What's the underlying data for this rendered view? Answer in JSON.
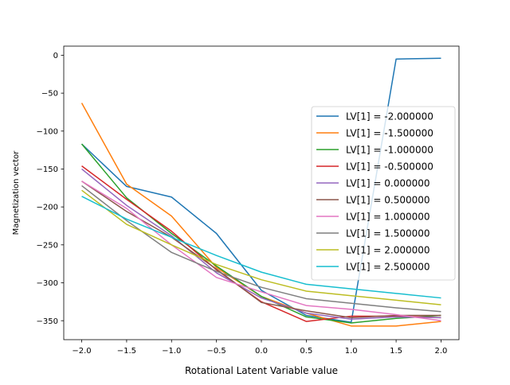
{
  "chart_data": {
    "type": "line",
    "title": "",
    "xlabel": "Rotational Latent Variable value",
    "ylabel": "Magnetization vector",
    "xlim": [
      -2.2,
      2.2
    ],
    "ylim": [
      -375,
      12
    ],
    "xticks": [
      -2.0,
      -1.5,
      -1.0,
      -0.5,
      0.0,
      0.5,
      1.0,
      1.5,
      2.0
    ],
    "xtick_labels": [
      "−2.0",
      "−1.5",
      "−1.0",
      "−0.5",
      "0.0",
      "0.5",
      "1.0",
      "1.5",
      "2.0"
    ],
    "yticks": [
      0,
      -50,
      -100,
      -150,
      -200,
      -250,
      -300,
      -350
    ],
    "ytick_labels": [
      "0",
      "−50",
      "−100",
      "−150",
      "−200",
      "−250",
      "−300",
      "−350"
    ],
    "grid": false,
    "legend_position": "center-right",
    "x": [
      -2.0,
      -1.5,
      -1.0,
      -0.5,
      0.0,
      0.5,
      1.0,
      1.5,
      2.0
    ],
    "series": [
      {
        "name": "LV[1] = -2.000000",
        "color": "#1f77b4",
        "values": [
          -117,
          -173,
          -187,
          -235,
          -310,
          -343,
          -352,
          -5,
          -4
        ]
      },
      {
        "name": "LV[1] = -1.500000",
        "color": "#ff7f0e",
        "values": [
          -63,
          -170,
          -212,
          -280,
          -318,
          -340,
          -357,
          -357,
          -351
        ]
      },
      {
        "name": "LV[1] = -1.000000",
        "color": "#2ca02c",
        "values": [
          -117,
          -188,
          -235,
          -278,
          -318,
          -345,
          -353,
          -347,
          -343
        ]
      },
      {
        "name": "LV[1] = -0.500000",
        "color": "#d62728",
        "values": [
          -146,
          -190,
          -232,
          -283,
          -325,
          -351,
          -344,
          -344,
          -346
        ]
      },
      {
        "name": "LV[1] = 0.000000",
        "color": "#9467bd",
        "values": [
          -150,
          -198,
          -238,
          -287,
          -320,
          -340,
          -348,
          -345,
          -346
        ]
      },
      {
        "name": "LV[1] = 0.500000",
        "color": "#8c564b",
        "values": [
          -166,
          -206,
          -240,
          -282,
          -326,
          -337,
          -346,
          -343,
          -343
        ]
      },
      {
        "name": "LV[1] = 1.000000",
        "color": "#e377c2",
        "values": [
          -166,
          -202,
          -250,
          -293,
          -312,
          -330,
          -335,
          -342,
          -350
        ]
      },
      {
        "name": "LV[1] = 1.500000",
        "color": "#7f7f7f",
        "values": [
          -172,
          -218,
          -260,
          -285,
          -306,
          -321,
          -327,
          -333,
          -338
        ]
      },
      {
        "name": "LV[1] = 2.000000",
        "color": "#bcbd22",
        "values": [
          -178,
          -223,
          -250,
          -276,
          -296,
          -311,
          -317,
          -323,
          -329
        ]
      },
      {
        "name": "LV[1] = 2.500000",
        "color": "#17becf",
        "values": [
          -186,
          -216,
          -240,
          -264,
          -286,
          -302,
          -308,
          -314,
          -320
        ]
      }
    ]
  }
}
